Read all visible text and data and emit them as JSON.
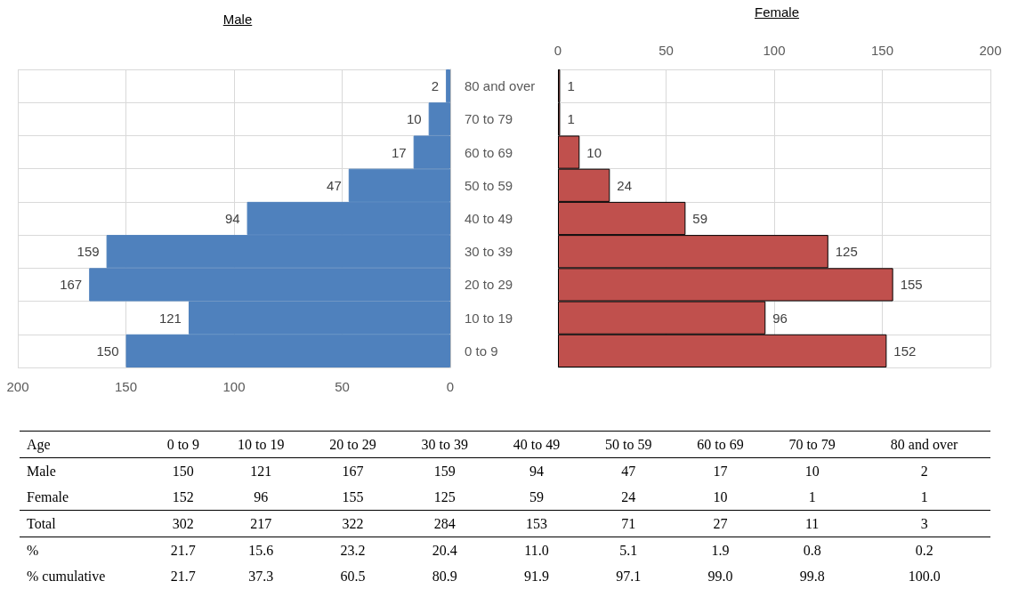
{
  "chart_data": [
    {
      "type": "bar",
      "title": "Male",
      "orientation": "horizontal",
      "categories": [
        "80 and over",
        "70 to 79",
        "60 to 69",
        "50 to 59",
        "40 to 49",
        "30 to 39",
        "20 to 29",
        "10 to 19",
        "0 to 9"
      ],
      "series": [
        {
          "color": "#4f81bd",
          "values": [
            2,
            10,
            17,
            47,
            94,
            159,
            167,
            121,
            150
          ]
        }
      ],
      "xlim": [
        200,
        0
      ],
      "xticks": [
        0,
        50,
        100,
        150,
        200
      ],
      "grid": true,
      "data_labels": true
    },
    {
      "type": "bar",
      "title": "Female",
      "orientation": "horizontal",
      "categories": [
        null,
        null,
        null,
        null,
        null,
        null,
        null,
        null,
        null
      ],
      "series": [
        {
          "color": "#c0504d",
          "values": [
            1,
            1,
            10,
            24,
            59,
            125,
            155,
            96,
            152
          ]
        }
      ],
      "xlim": [
        0,
        200
      ],
      "xticks": [
        0,
        50,
        100,
        150,
        200
      ],
      "grid": true,
      "data_labels": true,
      "tick_labels": "x"
    },
    {
      "type": "other",
      "xlabel": "Age",
      "data_labels": true,
      "categories": [
        "0 to 9",
        "10 to 19",
        "20 to 29",
        "30 to 39",
        "40 to 49",
        "50 to 59",
        "60 to 69",
        "70 to 79",
        "80 and over"
      ],
      "series": [
        {
          "name": "Male",
          "values": [
            150,
            121,
            167,
            159,
            94,
            47,
            17,
            10,
            2
          ]
        },
        {
          "name": "Female",
          "values": [
            152,
            96,
            155,
            125,
            59,
            24,
            10,
            1,
            1
          ]
        },
        {
          "name": "Total",
          "values": [
            302,
            217,
            322,
            284,
            153,
            71,
            27,
            11,
            3
          ]
        },
        {
          "name": "%",
          "values": [
            21.7,
            15.6,
            23.2,
            20.4,
            11.0,
            5.1,
            1.9,
            0.8,
            0.2
          ],
          "value_labels": [
            "21.7",
            "15.6",
            "23.2",
            "20.4",
            "11.0",
            "5.1",
            "1.9",
            "0.8",
            "0.2"
          ]
        },
        {
          "name": "% cumulative",
          "values": [
            21.7,
            37.3,
            60.5,
            80.9,
            91.9,
            97.1,
            99.0,
            99.8,
            100.0
          ],
          "value_labels": [
            "21.7",
            "37.3",
            "60.5",
            "80.9",
            "91.9",
            "97.1",
            "99.0",
            "99.8",
            "100.0"
          ]
        }
      ]
    }
  ]
}
